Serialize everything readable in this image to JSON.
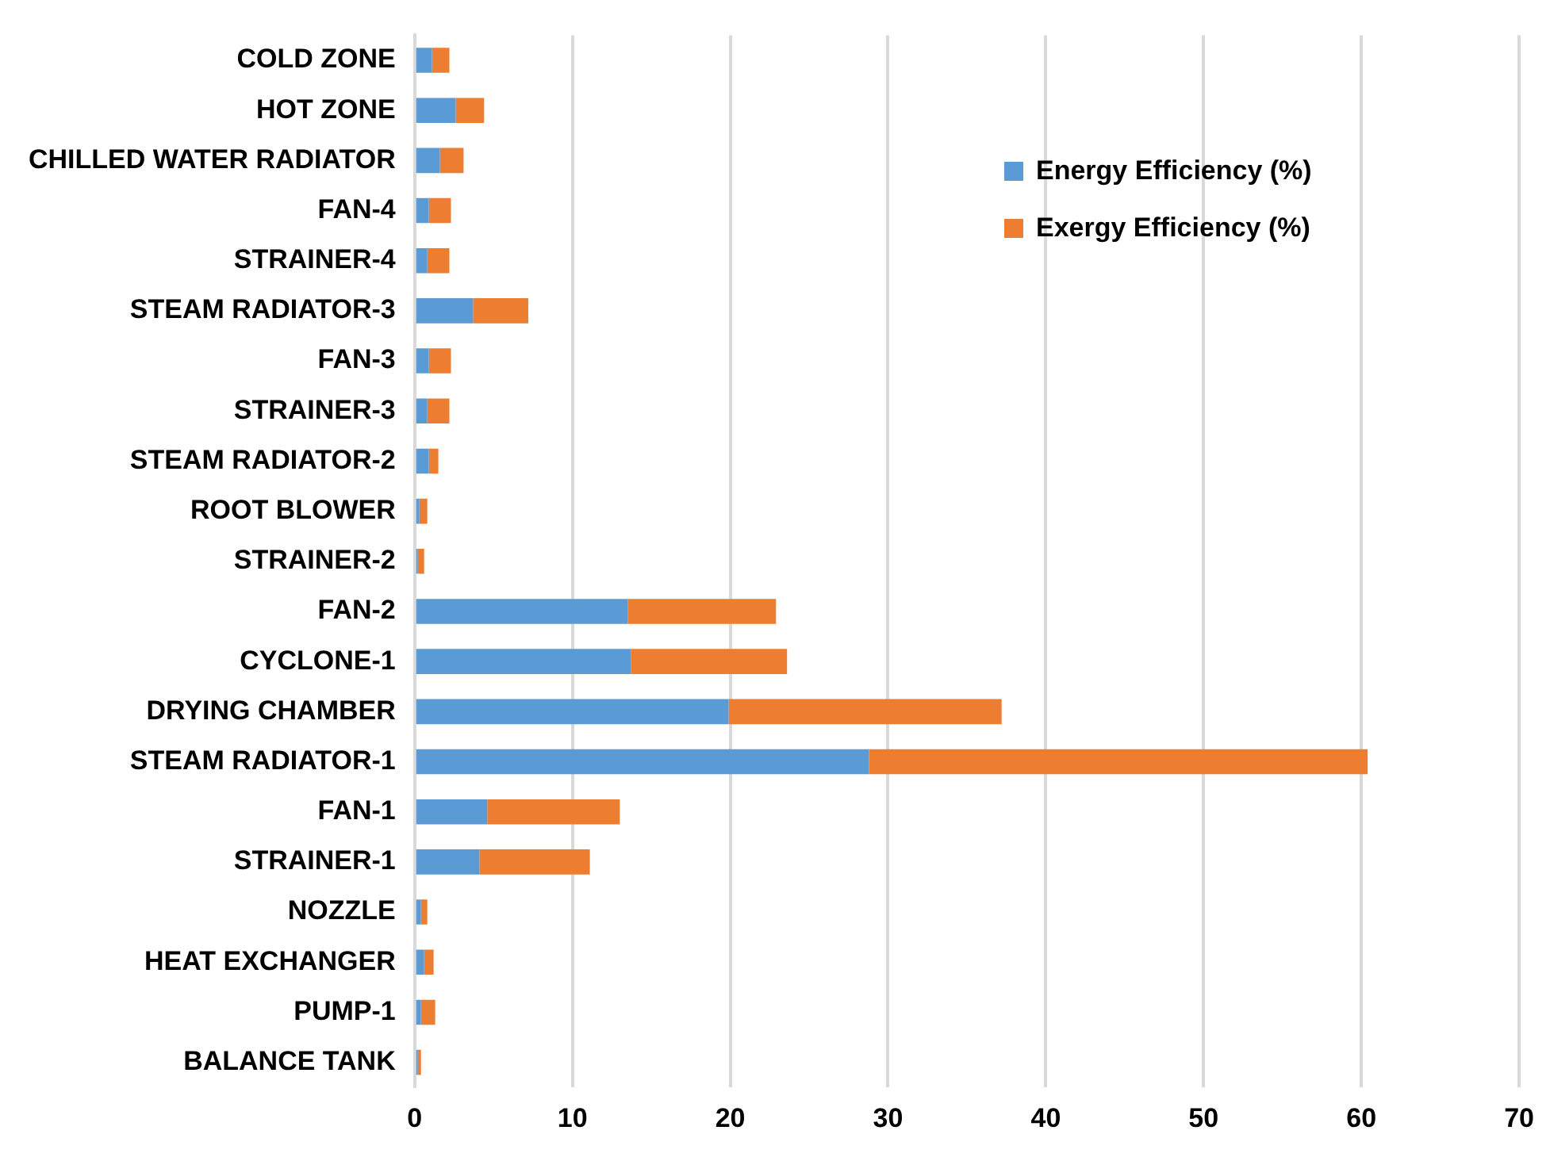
{
  "chart_data": {
    "type": "bar",
    "orientation": "horizontal",
    "stacked": true,
    "categories": [
      "COLD ZONE",
      "HOT ZONE",
      "CHILLED WATER RADIATOR",
      "FAN-4",
      "STRAINER-4",
      "STEAM RADIATOR-3",
      "FAN-3",
      "STRAINER-3",
      "STEAM RADIATOR-2",
      "ROOT BLOWER",
      "STRAINER-2",
      "FAN-2",
      "CYCLONE-1",
      "DRYING CHAMBER",
      "STEAM RADIATOR-1",
      "FAN-1",
      "STRAINER-1",
      "NOZZLE",
      "HEAT EXCHANGER",
      "PUMP-1",
      "BALANCE TANK"
    ],
    "series": [
      {
        "name": "Energy Efficiency (%)",
        "color": "#5b9bd5",
        "values": [
          1.1,
          2.6,
          1.6,
          0.9,
          0.8,
          3.7,
          0.9,
          0.8,
          0.9,
          0.3,
          0.2,
          13.5,
          13.7,
          19.9,
          28.8,
          4.6,
          4.1,
          0.4,
          0.6,
          0.4,
          0.2
        ]
      },
      {
        "name": "Exergy Efficiency (%)",
        "color": "#ed7d31",
        "values": [
          1.1,
          1.8,
          1.5,
          1.4,
          1.4,
          3.5,
          1.4,
          1.4,
          0.6,
          0.5,
          0.4,
          9.4,
          9.9,
          17.3,
          31.6,
          8.4,
          7.0,
          0.4,
          0.6,
          0.9,
          0.2
        ]
      }
    ],
    "xlim": [
      0,
      70
    ],
    "xticks": [
      0,
      10,
      20,
      30,
      40,
      50,
      60,
      70
    ],
    "grid": "x",
    "legend": "top right"
  }
}
